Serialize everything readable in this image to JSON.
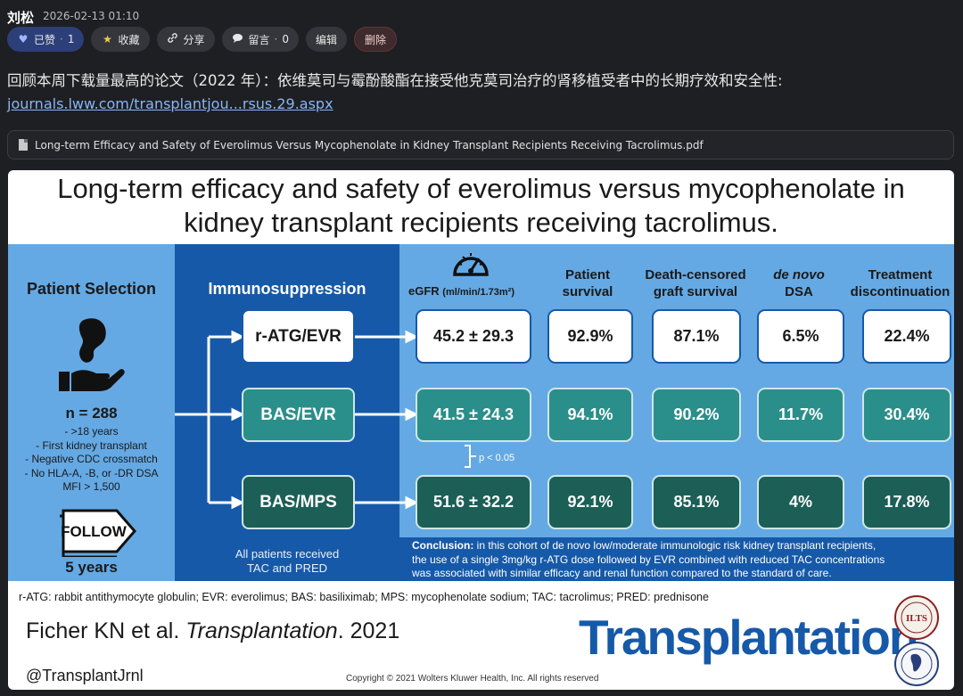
{
  "post": {
    "author": "刘松",
    "timestamp": "2026-02-13 01:10",
    "actions": {
      "like_label": "已赞",
      "like_count": "1",
      "favorite_label": "收藏",
      "share_label": "分享",
      "comment_label": "留言",
      "comment_count": "0",
      "edit_label": "编辑",
      "delete_label": "删除"
    },
    "text": "回顾本周下载量最高的论文（2022 年）：依维莫司与霉酚酸酯在接受他克莫司治疗的肾移植受者中的长期疗效和安全性:",
    "link": "journals.lww.com/transplantjou...rsus.29.aspx",
    "attachment": "Long-term Efficacy and Safety of Everolimus Versus Mycophenolate in Kidney Transplant Recipients Receiving Tacrolimus.pdf"
  },
  "infographic": {
    "title_line1": "Long-term efficacy and safety of everolimus versus mycophenolate in",
    "title_line2": "kidney transplant recipients receiving tacrolimus.",
    "patient_selection": {
      "heading": "Patient Selection",
      "n": "n = 288",
      "criteria": [
        "- >18 years",
        "- First kidney transplant",
        "- Negative CDC crossmatch",
        "- No HLA-A, -B, or -DR DSA",
        "MFI > 1,500"
      ],
      "follow_label": "FOLLOW",
      "duration": "5 years"
    },
    "immunosuppression": {
      "heading": "Immunosuppression",
      "arms": [
        "r-ATG/EVR",
        "BAS/EVR",
        "BAS/MPS"
      ],
      "note_line1": "All patients received",
      "note_line2": "TAC and PRED"
    },
    "outcomes": {
      "egfr_label": "eGFR",
      "egfr_unit": "(ml/min/1.73m²)",
      "patient_survival": [
        "Patient",
        "survival"
      ],
      "graft_survival": [
        "Death-censored",
        "graft survival"
      ],
      "dsa": [
        "de novo",
        "DSA"
      ],
      "discontinuation": [
        "Treatment",
        "discontinuation"
      ],
      "rows": [
        {
          "egfr": "45.2 ± 29.3",
          "patient": "92.9%",
          "graft": "87.1%",
          "dsa": "6.5%",
          "disc": "22.4%"
        },
        {
          "egfr": "41.5 ± 24.3",
          "patient": "94.1%",
          "graft": "90.2%",
          "dsa": "11.7%",
          "disc": "30.4%"
        },
        {
          "egfr": "51.6 ± 32.2",
          "patient": "92.1%",
          "graft": "85.1%",
          "dsa": "4%",
          "disc": "17.8%"
        }
      ],
      "p_value": "p < 0.05"
    },
    "conclusion": {
      "label": "Conclusion:",
      "line1": " in this cohort of de novo low/moderate immunologic risk kidney transplant recipients,",
      "line2": "the use of a single 3mg/kg r-ATG dose followed by EVR combined with reduced TAC concentrations",
      "line3": "was associated with similar efficacy and renal function compared to the standard of care."
    },
    "abbreviations": "r-ATG: rabbit antithymocyte globulin; EVR: everolimus; BAS: basiliximab; MPS: mycophenolate sodium; TAC: tacrolimus; PRED: prednisone",
    "citation_author": "Ficher KN et al. ",
    "citation_journal": "Transplantation",
    "citation_year": ". 2021",
    "handle": "@TransplantJrnl",
    "copyright": "Copyright © 2021 Wolters Kluwer Health, Inc. All rights reserved",
    "brand": "Transplantation",
    "seal_text": "ILTS"
  },
  "colors": {
    "background": "#1e1f22",
    "link": "#8ab4f8",
    "light_blue_panel": "#64a9e4",
    "dark_blue_panel": "#1659a8",
    "teal": "#2a8f8a",
    "dark_teal": "#1b5f56"
  }
}
